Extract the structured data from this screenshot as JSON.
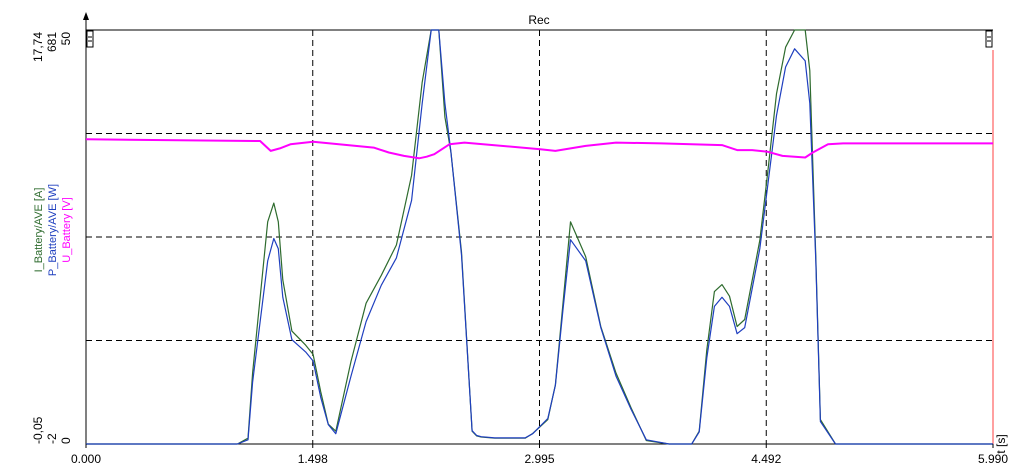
{
  "chart_data": {
    "type": "line",
    "title": "Rec",
    "xlabel": "t [s]",
    "xlim": [
      0,
      5.99
    ],
    "x_ticks": [
      "0.000",
      "1.498",
      "2.995",
      "4.492",
      "5.990"
    ],
    "grid": "dashed",
    "axes": [
      {
        "name": "I_Battery/AVE [A]",
        "color": "#2e6b2e",
        "top_label": "17,74",
        "bottom_label": "-0,05",
        "ylim": [
          -0.05,
          17.74
        ]
      },
      {
        "name": "P_Battery/AVE [W]",
        "color": "#1f3fbf",
        "top_label": "681",
        "bottom_label": "-2",
        "ylim": [
          -2,
          681
        ]
      },
      {
        "name": "U_Battery [V]",
        "color": "#ff00ff",
        "top_label": "50",
        "bottom_label": "0",
        "ylim": [
          0,
          50
        ]
      }
    ],
    "series": [
      {
        "name": "I_Battery/AVE [A]",
        "color": "#2e6b2e",
        "x": [
          0,
          1.0,
          1.07,
          1.1,
          1.2,
          1.24,
          1.27,
          1.3,
          1.36,
          1.45,
          1.5,
          1.55,
          1.6,
          1.65,
          1.75,
          1.85,
          1.95,
          2.05,
          2.15,
          2.22,
          2.28,
          2.33,
          2.37,
          2.41,
          2.48,
          2.55,
          2.58,
          2.61,
          2.7,
          2.9,
          2.95,
          3.05,
          3.1,
          3.15,
          3.2,
          3.3,
          3.4,
          3.5,
          3.6,
          3.7,
          3.85,
          4.0,
          4.05,
          4.1,
          4.15,
          4.2,
          4.25,
          4.3,
          4.35,
          4.45,
          4.5,
          4.56,
          4.62,
          4.68,
          4.75,
          4.78,
          4.82,
          4.85,
          4.95,
          5.2,
          5.99
        ],
        "y": [
          -0.05,
          -0.05,
          0.2,
          3.0,
          9.5,
          10.3,
          9.5,
          7.0,
          4.8,
          4.2,
          3.8,
          2.2,
          0.8,
          0.5,
          3.5,
          6.0,
          7.2,
          8.5,
          11.5,
          15.5,
          17.74,
          17.74,
          14.0,
          12.5,
          8.2,
          0.5,
          0.3,
          0.25,
          0.2,
          0.2,
          0.4,
          1.0,
          2.5,
          6.0,
          9.5,
          8.0,
          5.0,
          3.0,
          1.5,
          0.1,
          -0.05,
          -0.05,
          0.5,
          4.0,
          6.5,
          6.8,
          6.3,
          5.0,
          5.3,
          8.7,
          11.5,
          15.0,
          17.0,
          17.74,
          17.74,
          16.0,
          8.0,
          1.0,
          -0.05,
          -0.05,
          -0.05
        ]
      },
      {
        "name": "P_Battery/AVE [W]",
        "color": "#1f3fbf",
        "x": [
          0,
          1.0,
          1.07,
          1.1,
          1.2,
          1.24,
          1.27,
          1.3,
          1.36,
          1.45,
          1.5,
          1.55,
          1.6,
          1.65,
          1.75,
          1.85,
          1.95,
          2.05,
          2.15,
          2.22,
          2.28,
          2.33,
          2.37,
          2.41,
          2.48,
          2.55,
          2.58,
          2.61,
          2.7,
          2.9,
          2.95,
          3.05,
          3.1,
          3.15,
          3.2,
          3.3,
          3.4,
          3.5,
          3.6,
          3.7,
          3.85,
          4.0,
          4.05,
          4.1,
          4.15,
          4.2,
          4.25,
          4.3,
          4.35,
          4.45,
          4.5,
          4.56,
          4.62,
          4.68,
          4.75,
          4.78,
          4.82,
          4.85,
          4.95,
          5.2,
          5.99
        ],
        "y": [
          -2,
          -2,
          5,
          100,
          300,
          337,
          320,
          240,
          170,
          150,
          135,
          75,
          30,
          15,
          110,
          200,
          260,
          305,
          400,
          560,
          681,
          681,
          560,
          480,
          310,
          20,
          12,
          10,
          8,
          8,
          15,
          40,
          95,
          220,
          335,
          300,
          190,
          110,
          55,
          5,
          -2,
          -2,
          18,
          140,
          225,
          240,
          225,
          180,
          190,
          320,
          420,
          540,
          620,
          650,
          630,
          560,
          300,
          35,
          -2,
          -2,
          -2
        ]
      },
      {
        "name": "U_Battery [V]",
        "color": "#ff00ff",
        "x": [
          0,
          1.15,
          1.22,
          1.28,
          1.35,
          1.5,
          1.9,
          2.0,
          2.1,
          2.2,
          2.25,
          2.3,
          2.4,
          2.5,
          3.0,
          3.1,
          3.3,
          3.5,
          3.8,
          4.2,
          4.3,
          4.4,
          4.5,
          4.6,
          4.75,
          4.8,
          4.9,
          5.0,
          5.99
        ],
        "y": [
          36.8,
          36.6,
          35.4,
          35.7,
          36.2,
          36.5,
          35.8,
          35.2,
          34.8,
          34.5,
          34.7,
          35.0,
          36.2,
          36.4,
          35.6,
          35.4,
          36.0,
          36.4,
          36.3,
          36.1,
          35.5,
          35.5,
          35.3,
          34.8,
          34.6,
          35.2,
          36.2,
          36.3,
          36.3
        ]
      }
    ]
  }
}
